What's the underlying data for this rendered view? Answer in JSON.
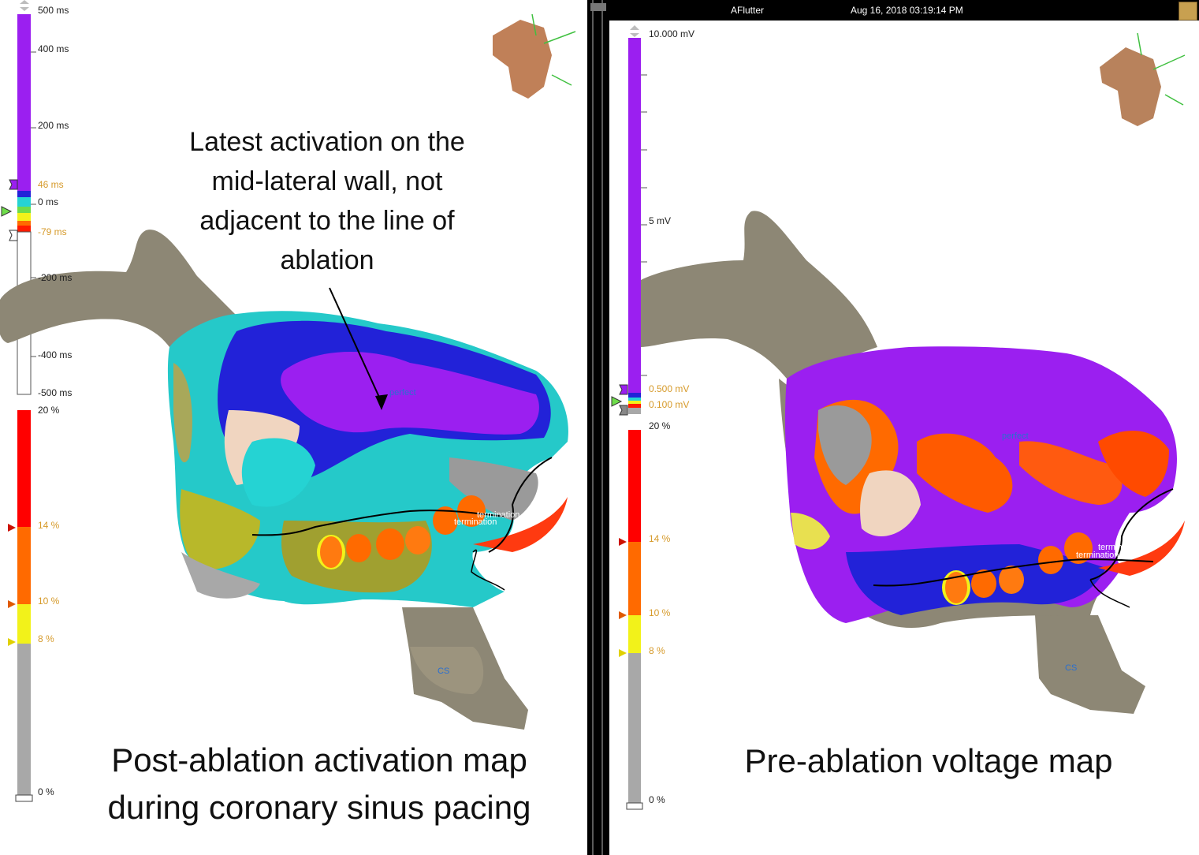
{
  "left": {
    "time_scale_labels": [
      "500 ms",
      "400 ms",
      "200 ms",
      "46 ms",
      "0 ms",
      "-79 ms",
      "-200 ms",
      "-400 ms",
      "-500 ms"
    ],
    "percent_scale_labels": [
      "20 %",
      "14 %",
      "10 %",
      "8 %",
      "0 %"
    ],
    "annotation": "Latest activation on the mid-lateral wall, not adjacent to the line of ablation",
    "annotation_lines": [
      "Latest activation on the",
      "mid-lateral wall, not",
      "adjacent to the line of",
      "ablation"
    ],
    "map_labels": {
      "perfect": "perfect",
      "termination_1": "termination",
      "termination_2": "termination",
      "cs": "CS"
    },
    "caption_lines": [
      "Post-ablation activation map",
      "during coronary sinus pacing"
    ]
  },
  "right": {
    "header": {
      "rhythm": "AFlutter",
      "datetime": "Aug 16, 2018 03:19:14 PM"
    },
    "voltage_scale_labels": [
      "10.000 mV",
      "5 mV",
      "0.500 mV",
      "0.100 mV"
    ],
    "percent_scale_labels": [
      "20 %",
      "14 %",
      "10 %",
      "8 %",
      "0 %"
    ],
    "map_labels": {
      "perfect": "perfect",
      "termination_1": "termination",
      "termination_2": "termination",
      "cs": "CS"
    },
    "caption": "Pre-ablation voltage map"
  },
  "colors": {
    "purple": "#9b1ff0",
    "blue": "#2222d8",
    "cyan": "#25d3d3",
    "yellow": "#f2f21a",
    "orange": "#ff6a00",
    "red": "#ff1a00",
    "gray": "#a8a8a8",
    "anatomy_tan": "#8d8775",
    "amber_text": "#d69a2a"
  },
  "icons": [
    "heart-orientation-icon",
    "scale-arrow-icon",
    "scale-marker-icon"
  ]
}
